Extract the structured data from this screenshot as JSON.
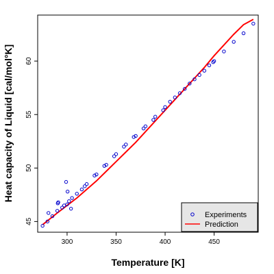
{
  "chart_data": {
    "type": "scatter",
    "title": "",
    "xlabel": "Temperature [K]",
    "ylabel": "Heat capacity of Liquid [cal/mol°K]",
    "xlim": [
      270,
      495
    ],
    "ylim": [
      44,
      64.3
    ],
    "xticks": [
      300,
      350,
      400,
      450
    ],
    "yticks": [
      45,
      50,
      55,
      60
    ],
    "grid": false,
    "legend_position": "bottom-right",
    "series": [
      {
        "name": "Experiments",
        "kind": "points",
        "marker": "open-circle",
        "color": "#0000cc",
        "points": [
          [
            275.0,
            44.6
          ],
          [
            280.0,
            45.0
          ],
          [
            281.0,
            45.8
          ],
          [
            285.0,
            45.5
          ],
          [
            290.0,
            46.0
          ],
          [
            290.5,
            46.7
          ],
          [
            291.0,
            46.8
          ],
          [
            295.0,
            46.3
          ],
          [
            297.0,
            46.5
          ],
          [
            299.0,
            48.7
          ],
          [
            300.0,
            46.6
          ],
          [
            300.5,
            47.8
          ],
          [
            302.0,
            46.9
          ],
          [
            304.0,
            46.2
          ],
          [
            305.0,
            47.2
          ],
          [
            310.0,
            47.6
          ],
          [
            315.0,
            48.0
          ],
          [
            318.0,
            48.3
          ],
          [
            320.0,
            48.5
          ],
          [
            328.0,
            49.3
          ],
          [
            330.0,
            49.4
          ],
          [
            338.0,
            50.2
          ],
          [
            340.0,
            50.3
          ],
          [
            348.0,
            51.1
          ],
          [
            350.0,
            51.3
          ],
          [
            358.0,
            52.0
          ],
          [
            360.0,
            52.2
          ],
          [
            368.0,
            52.9
          ],
          [
            370.0,
            53.0
          ],
          [
            378.0,
            53.7
          ],
          [
            380.0,
            53.9
          ],
          [
            388.0,
            54.5
          ],
          [
            390.0,
            54.8
          ],
          [
            398.0,
            55.4
          ],
          [
            400.0,
            55.7
          ],
          [
            405.0,
            56.2
          ],
          [
            410.0,
            56.6
          ],
          [
            415.0,
            57.0
          ],
          [
            420.0,
            57.4
          ],
          [
            425.0,
            57.9
          ],
          [
            430.0,
            58.3
          ],
          [
            435.0,
            58.7
          ],
          [
            440.0,
            59.1
          ],
          [
            445.0,
            59.6
          ],
          [
            449.0,
            59.9
          ],
          [
            450.0,
            60.0
          ],
          [
            460.0,
            60.9
          ],
          [
            470.0,
            61.8
          ],
          [
            480.0,
            62.6
          ],
          [
            490.0,
            63.5
          ]
        ]
      },
      {
        "name": "Prediction",
        "kind": "line",
        "color": "#ff0000",
        "points": [
          [
            275.0,
            44.7
          ],
          [
            290.0,
            45.8
          ],
          [
            300.0,
            46.5
          ],
          [
            310.0,
            47.2
          ],
          [
            320.0,
            48.0
          ],
          [
            330.0,
            48.8
          ],
          [
            340.0,
            49.7
          ],
          [
            350.0,
            50.6
          ],
          [
            360.0,
            51.5
          ],
          [
            370.0,
            52.4
          ],
          [
            380.0,
            53.4
          ],
          [
            390.0,
            54.4
          ],
          [
            400.0,
            55.4
          ],
          [
            410.0,
            56.4
          ],
          [
            420.0,
            57.4
          ],
          [
            430.0,
            58.4
          ],
          [
            440.0,
            59.4
          ],
          [
            450.0,
            60.5
          ],
          [
            460.0,
            61.5
          ],
          [
            470.0,
            62.5
          ],
          [
            480.0,
            63.4
          ],
          [
            490.0,
            63.9
          ]
        ]
      }
    ]
  }
}
